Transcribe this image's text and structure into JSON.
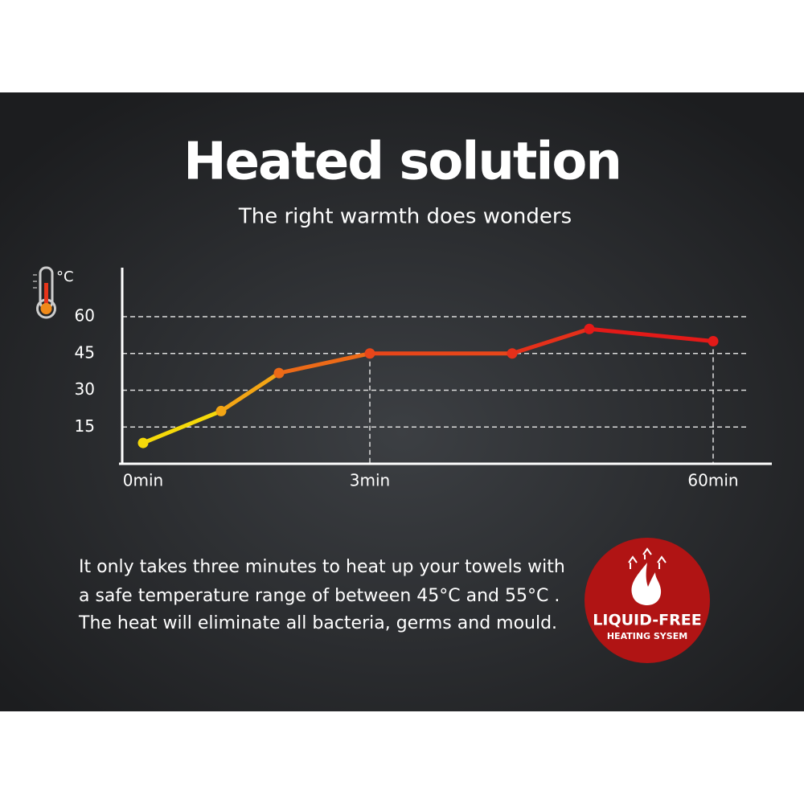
{
  "title": "Heated solution",
  "subtitle": "The right warmth does wonders",
  "chart_data": {
    "type": "line",
    "y_unit": "°C",
    "categories": [
      "0min",
      null,
      null,
      "3min",
      null,
      null,
      "60min"
    ],
    "series": [
      {
        "values": [
          8.5,
          21.5,
          37,
          45,
          45,
          55,
          50
        ],
        "colors": [
          "#f5d90a",
          "#f3a515",
          "#ec6a18",
          "#e8461a",
          "#e5301a",
          "#e31a18",
          "#e31a18"
        ]
      }
    ],
    "ylim": [
      0,
      80
    ],
    "yticks": [
      15,
      30,
      45,
      60
    ],
    "grid": true
  },
  "body": [
    "It only takes three minutes to heat up your towels with",
    "a safe temperature range of between 45°C and 55°C .",
    "The heat will eliminate all bacteria, germs and mould."
  ],
  "badge": {
    "title": "LIQUID-FREE",
    "subtitle": "HEATING SYSEM"
  }
}
